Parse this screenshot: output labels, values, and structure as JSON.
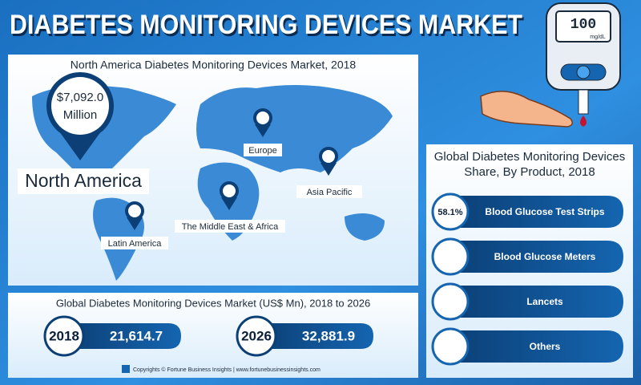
{
  "header": {
    "title": "DIABETES MONITORING DEVICES MARKET"
  },
  "device": {
    "reading": "100",
    "unit": "mg/dL"
  },
  "map": {
    "title": "North America Diabetes Monitoring Devices Market, 2018",
    "callout": {
      "value": "$7,092.0",
      "unit": "Million"
    },
    "regions": [
      "North America",
      "Europe",
      "Asia Pacific",
      "The Middle East & Africa",
      "Latin America"
    ]
  },
  "market": {
    "title": "Global Diabetes Monitoring Devices Market (US$ Mn), 2018 to 2026",
    "items": [
      {
        "year": "2018",
        "value": "21,614.7"
      },
      {
        "year": "2026",
        "value": "32,881.9"
      }
    ]
  },
  "share": {
    "title": "Global Diabetes Monitoring Devices Share, By Product, 2018",
    "items": [
      {
        "label": "58.1%",
        "name": "Blood Glucose Test Strips"
      },
      {
        "name": "Blood Glucose Meters"
      },
      {
        "name": "Lancets"
      },
      {
        "name": "Others"
      }
    ]
  },
  "footer": {
    "copyright": "Copyrights © Fortune Business Insights | www.fortunebusinessinsights.com"
  }
}
